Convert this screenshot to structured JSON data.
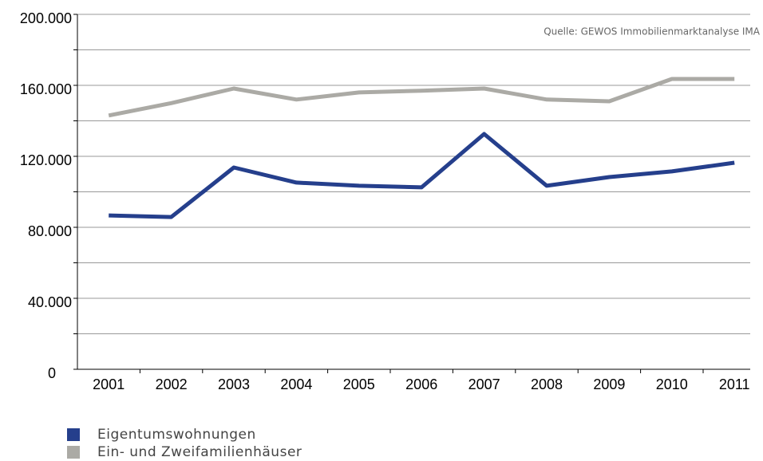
{
  "chart_data": {
    "type": "line",
    "annotation": "Quelle: GEWOS Immobilienmarktanalyse IMA",
    "categories": [
      "2001",
      "2002",
      "2003",
      "2004",
      "2005",
      "2006",
      "2007",
      "2008",
      "2009",
      "2010",
      "2011"
    ],
    "series": [
      {
        "name": "Eigentumswohnungen",
        "color": "#253f8c",
        "values": [
          86700,
          85800,
          113700,
          105200,
          103400,
          102500,
          132600,
          103400,
          108300,
          111500,
          116400
        ]
      },
      {
        "name": "Ein- und Zweifamilienhäuser",
        "color": "#abaaa5",
        "values": [
          143000,
          150000,
          158200,
          152000,
          156000,
          157000,
          158200,
          152000,
          151000,
          163600,
          163600
        ]
      }
    ],
    "ylim": [
      0,
      200000
    ],
    "yticks": [
      0,
      {
        "value": 40000,
        "label": "40.000"
      },
      {
        "value": 80000,
        "label": "80.000"
      },
      {
        "value": 120000,
        "label": "120.000"
      },
      {
        "value": 160000,
        "label": "160.000"
      },
      {
        "value": 200000,
        "label": "200.000"
      }
    ],
    "minor_yticks": [
      20000,
      60000,
      100000,
      140000,
      180000
    ],
    "grid": true,
    "legend": "bottom-left"
  }
}
